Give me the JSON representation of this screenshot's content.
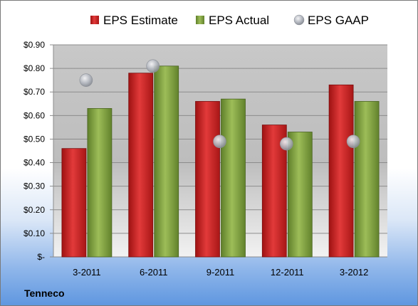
{
  "company": "Tenneco",
  "colors": {
    "estimate": "#d42a2a",
    "actual": "#8fb04a",
    "gaap": "#b8bcc4"
  },
  "chart_data": {
    "type": "bar",
    "categories": [
      "3-2011",
      "6-2011",
      "9-2011",
      "12-2011",
      "3-2012"
    ],
    "series": [
      {
        "name": "EPS Estimate",
        "type": "bar",
        "values": [
          0.46,
          0.78,
          0.66,
          0.56,
          0.73
        ]
      },
      {
        "name": "EPS Actual",
        "type": "bar",
        "values": [
          0.63,
          0.81,
          0.67,
          0.53,
          0.66
        ]
      },
      {
        "name": "EPS GAAP",
        "type": "scatter",
        "values": [
          0.75,
          0.81,
          0.49,
          0.48,
          0.49
        ]
      }
    ],
    "y_ticks": [
      0,
      0.1,
      0.2,
      0.3,
      0.4,
      0.5,
      0.6,
      0.7,
      0.8,
      0.9
    ],
    "y_tick_labels": [
      "$-",
      "$0.10",
      "$0.20",
      "$0.30",
      "$0.40",
      "$0.50",
      "$0.60",
      "$0.70",
      "$0.80",
      "$0.90"
    ],
    "ylim": [
      0,
      0.9
    ],
    "grid": true,
    "legend_position": "top"
  }
}
